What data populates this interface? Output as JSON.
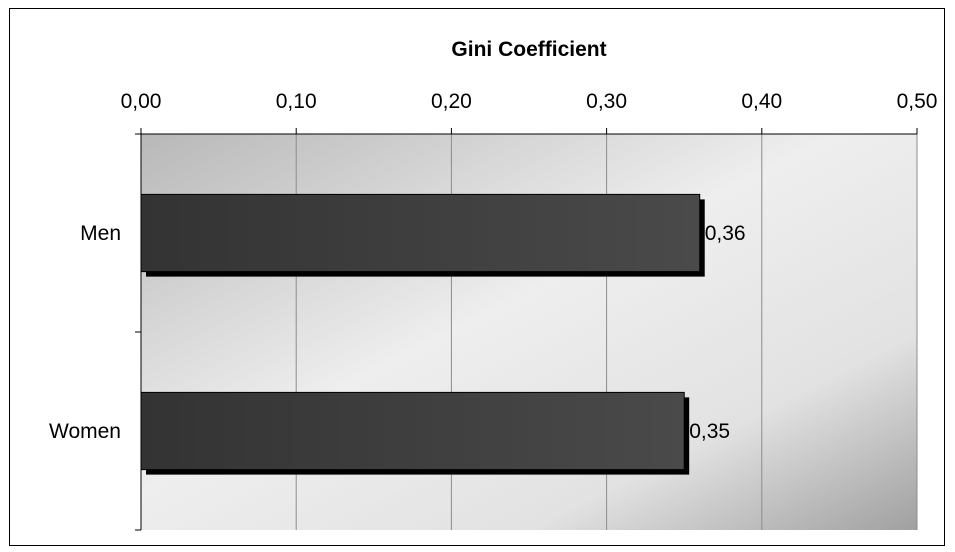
{
  "chart_data": {
    "type": "bar",
    "orientation": "horizontal",
    "title": "Gini Coefficient",
    "xlabel": "Gini Coefficient",
    "ylabel": "",
    "categories": [
      "Men",
      "Women"
    ],
    "values": [
      0.36,
      0.35
    ],
    "data_labels": [
      "0,36",
      "0,35"
    ],
    "xlim": [
      0,
      0.5
    ],
    "x_ticks": [
      0,
      0.1,
      0.2,
      0.3,
      0.4,
      0.5
    ],
    "x_tick_labels": [
      "0,00",
      "0,10",
      "0,20",
      "0,30",
      "0,40",
      "0,50"
    ],
    "axis_position": "top",
    "grid": true,
    "legend": "none",
    "colors": {
      "bar": "#404040",
      "shadow": "#000000",
      "grid": "#8c8c8c"
    }
  }
}
